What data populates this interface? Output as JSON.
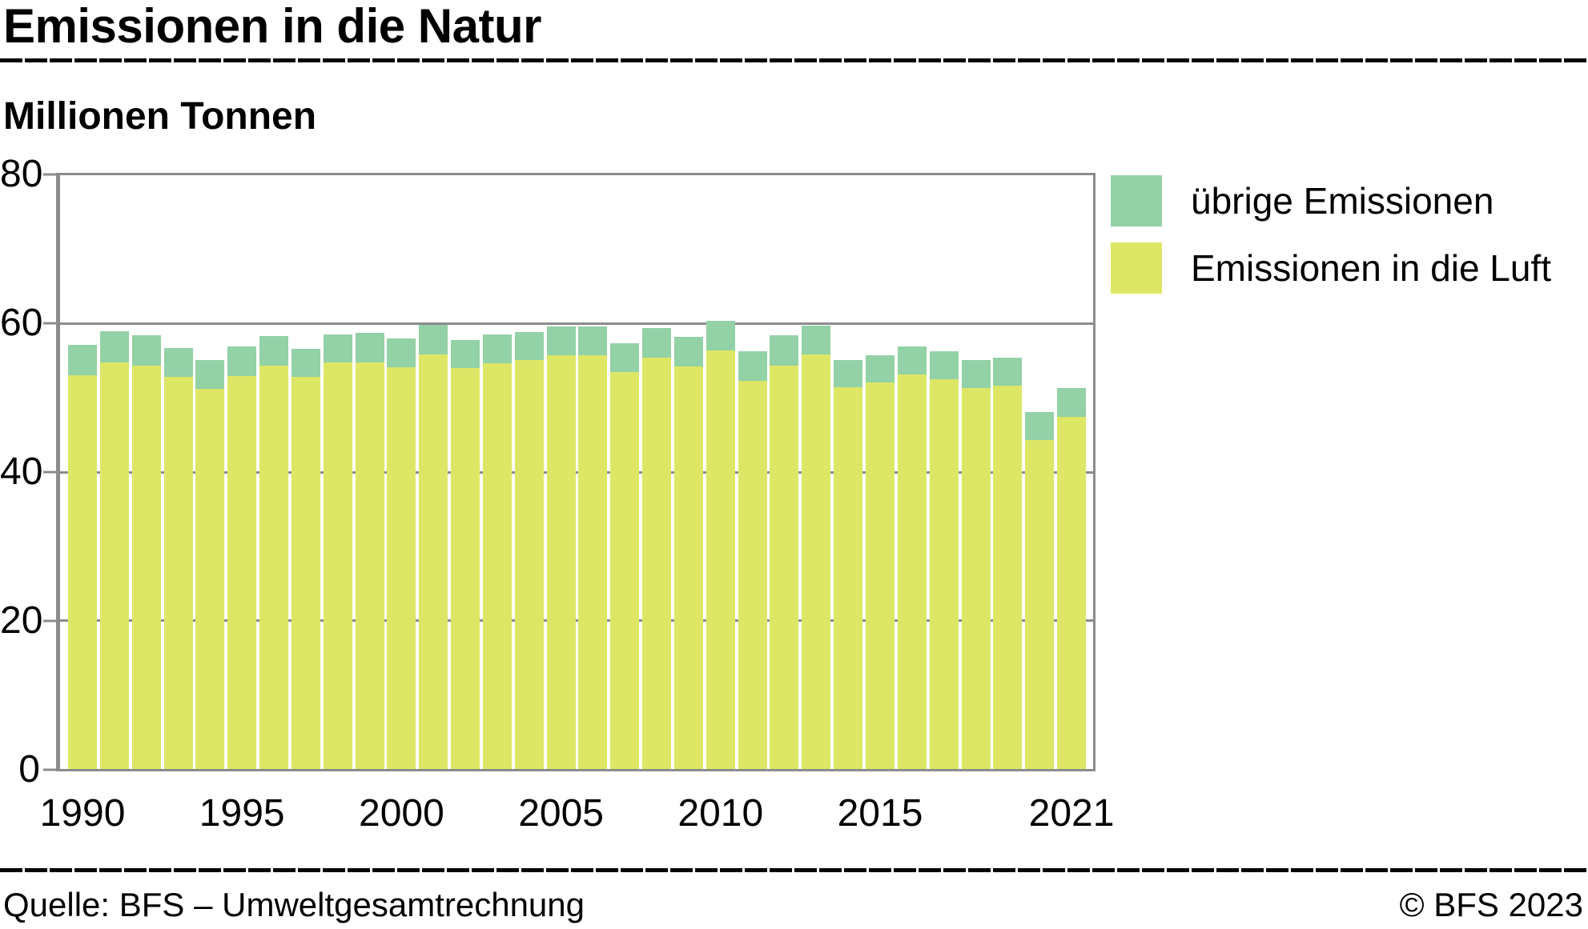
{
  "title": "Emissionen in die Natur",
  "subtitle": "Millionen Tonnen",
  "legend": [
    {
      "label": "übrige Emissionen",
      "color": "#93d1a6"
    },
    {
      "label": "Emissionen in die Luft",
      "color": "#dde765"
    }
  ],
  "footer": {
    "source": "Quelle: BFS – Umweltgesamtrechnung",
    "copyright": "© BFS 2023"
  },
  "chart_data": {
    "type": "bar",
    "stacked": true,
    "title": "Emissionen in die Natur",
    "ylabel": "Millionen Tonnen",
    "xlabel": "",
    "ylim": [
      0,
      80
    ],
    "yticks": [
      0,
      20,
      40,
      60,
      80
    ],
    "xtick_labels": [
      "1990",
      "1995",
      "2000",
      "2005",
      "2010",
      "2015",
      "2021"
    ],
    "grid": "horizontal",
    "legend_position": "top-right",
    "axis_color": "#8c8c8c",
    "categories": [
      1990,
      1991,
      1992,
      1993,
      1994,
      1995,
      1996,
      1997,
      1998,
      1999,
      2000,
      2001,
      2002,
      2003,
      2004,
      2005,
      2006,
      2007,
      2008,
      2009,
      2010,
      2011,
      2012,
      2013,
      2014,
      2015,
      2016,
      2017,
      2018,
      2019,
      2020,
      2021
    ],
    "series": [
      {
        "name": "Emissionen in die Luft",
        "color": "#dde765",
        "values": [
          53.0,
          54.8,
          54.3,
          52.8,
          51.2,
          52.9,
          54.3,
          52.8,
          54.8,
          54.8,
          54.1,
          55.9,
          54.0,
          54.7,
          55.1,
          55.7,
          55.7,
          53.5,
          55.4,
          54.2,
          56.4,
          52.3,
          54.3,
          55.9,
          51.4,
          52.1,
          53.2,
          52.5,
          51.3,
          51.6,
          44.3,
          47.4
        ]
      },
      {
        "name": "übrige Emissionen",
        "color": "#93d1a6",
        "values": [
          4.1,
          4.2,
          4.1,
          3.9,
          3.9,
          4.0,
          4.0,
          3.8,
          3.7,
          4.0,
          3.9,
          3.9,
          3.8,
          3.9,
          3.8,
          3.9,
          3.9,
          3.9,
          4.0,
          4.0,
          4.0,
          4.0,
          4.1,
          3.8,
          3.7,
          3.6,
          3.7,
          3.8,
          3.8,
          3.8,
          3.8,
          3.9
        ]
      }
    ]
  }
}
